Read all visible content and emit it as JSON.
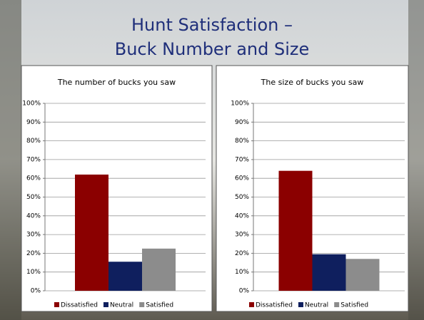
{
  "slide_title": [
    "Hunt Satisfaction –",
    "Buck Number and Size"
  ],
  "chart_data": [
    {
      "type": "bar",
      "title": "The number of bucks you saw",
      "categories": [
        null
      ],
      "series": [
        {
          "name": "Dissatisfied",
          "color": "#8b0000",
          "values": [
            62
          ]
        },
        {
          "name": "Neutral",
          "color": "#0f1f5e",
          "values": [
            15.5
          ]
        },
        {
          "name": "Satisfied",
          "color": "#8c8c8c",
          "values": [
            22.5
          ]
        }
      ],
      "ylim": [
        0,
        100
      ],
      "yticks": [
        {
          "value": 0,
          "label": "0%"
        },
        {
          "value": 10,
          "label": "10%"
        },
        {
          "value": 20,
          "label": "20%"
        },
        {
          "value": 30,
          "label": "30%"
        },
        {
          "value": 40,
          "label": "40%"
        },
        {
          "value": 50,
          "label": "50%"
        },
        {
          "value": 60,
          "label": "60%"
        },
        {
          "value": 70,
          "label": "70%"
        },
        {
          "value": 80,
          "label": "80%"
        },
        {
          "value": 90,
          "label": "90%"
        },
        {
          "value": 100,
          "label": "100%"
        }
      ],
      "grid": true,
      "legend": "bottom"
    },
    {
      "type": "bar",
      "title": "The size of bucks you saw",
      "categories": [
        null
      ],
      "series": [
        {
          "name": "Dissatisfied",
          "color": "#8b0000",
          "values": [
            64
          ]
        },
        {
          "name": "Neutral",
          "color": "#0f1f5e",
          "values": [
            19.5
          ]
        },
        {
          "name": "Satisfied",
          "color": "#8c8c8c",
          "values": [
            17
          ]
        }
      ],
      "ylim": [
        0,
        100
      ],
      "yticks": [
        {
          "value": 0,
          "label": "0%"
        },
        {
          "value": 10,
          "label": "10%"
        },
        {
          "value": 20,
          "label": "20%"
        },
        {
          "value": 30,
          "label": "30%"
        },
        {
          "value": 40,
          "label": "40%"
        },
        {
          "value": 50,
          "label": "50%"
        },
        {
          "value": 60,
          "label": "60%"
        },
        {
          "value": 70,
          "label": "70%"
        },
        {
          "value": 80,
          "label": "80%"
        },
        {
          "value": 90,
          "label": "90%"
        },
        {
          "value": 100,
          "label": "100%"
        }
      ],
      "grid": true,
      "legend": "bottom"
    }
  ]
}
